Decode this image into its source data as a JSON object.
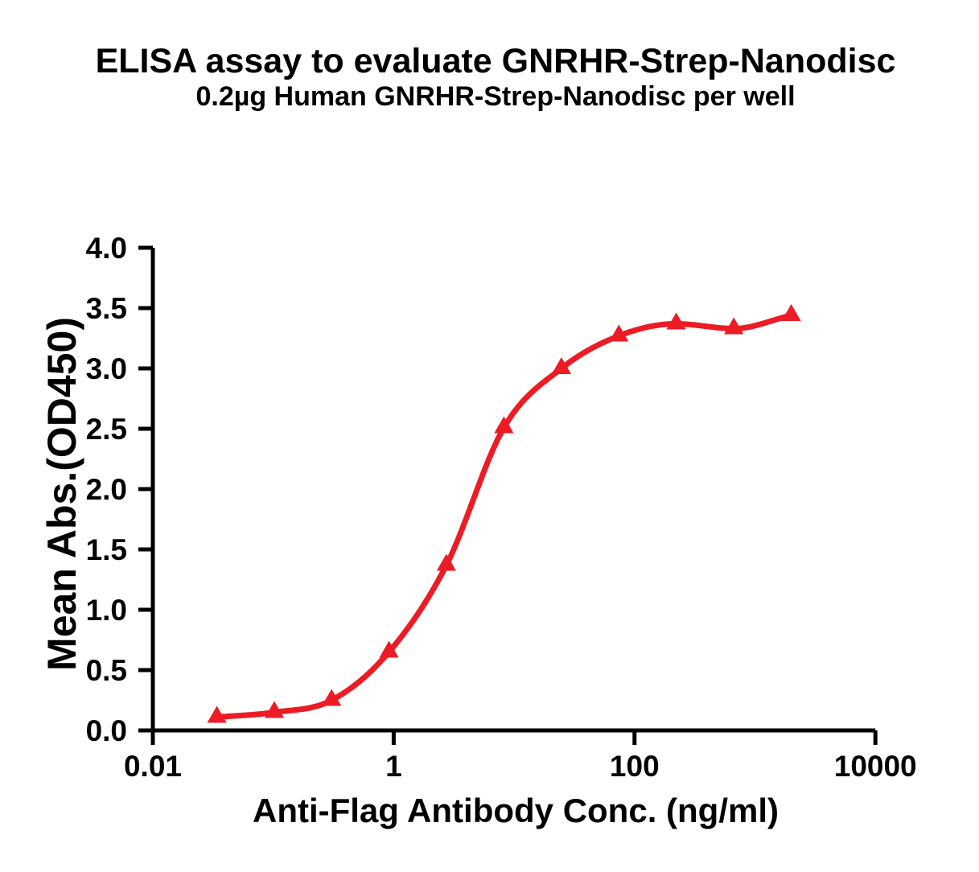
{
  "chart_data": {
    "type": "line",
    "title": "ELISA assay to evaluate GNRHR-Strep-Nanodisc",
    "subtitle": "0.2µg Human GNRHR-Strep-Nanodisc per well",
    "xlabel": "Anti-Flag Antibody Conc. (ng/ml)",
    "ylabel": "Mean Abs.(OD450)",
    "x_scale": "log10",
    "xlim": [
      0.01,
      10000
    ],
    "ylim": [
      0.0,
      4.0
    ],
    "grid": false,
    "legend": "none",
    "x_ticks": [
      {
        "value": 0.01,
        "label": "0.01"
      },
      {
        "value": 1,
        "label": "1"
      },
      {
        "value": 100,
        "label": "100"
      },
      {
        "value": 10000,
        "label": "10000"
      }
    ],
    "y_ticks": [
      {
        "value": 0.0,
        "label": "0.0"
      },
      {
        "value": 0.5,
        "label": "0.5"
      },
      {
        "value": 1.0,
        "label": "1.0"
      },
      {
        "value": 1.5,
        "label": "1.5"
      },
      {
        "value": 2.0,
        "label": "2.0"
      },
      {
        "value": 2.5,
        "label": "2.5"
      },
      {
        "value": 3.0,
        "label": "3.0"
      },
      {
        "value": 3.5,
        "label": "3.5"
      },
      {
        "value": 4.0,
        "label": "4.0"
      }
    ],
    "series": [
      {
        "marker": "triangle-up",
        "color": "#ED1C24",
        "curve_style": "smooth-sigmoid-through-points",
        "points": [
          {
            "x": 0.034,
            "y": 0.11
          },
          {
            "x": 0.102,
            "y": 0.15
          },
          {
            "x": 0.305,
            "y": 0.25
          },
          {
            "x": 0.914,
            "y": 0.65
          },
          {
            "x": 2.74,
            "y": 1.37
          },
          {
            "x": 8.23,
            "y": 2.51
          },
          {
            "x": 24.7,
            "y": 3.0
          },
          {
            "x": 74.1,
            "y": 3.27
          },
          {
            "x": 222,
            "y": 3.37
          },
          {
            "x": 667,
            "y": 3.33
          },
          {
            "x": 2000,
            "y": 3.44
          }
        ]
      }
    ],
    "colors": {
      "accent": "#ED1C24",
      "axis": "#000000",
      "text": "#000000",
      "background": "#FFFFFF"
    }
  }
}
